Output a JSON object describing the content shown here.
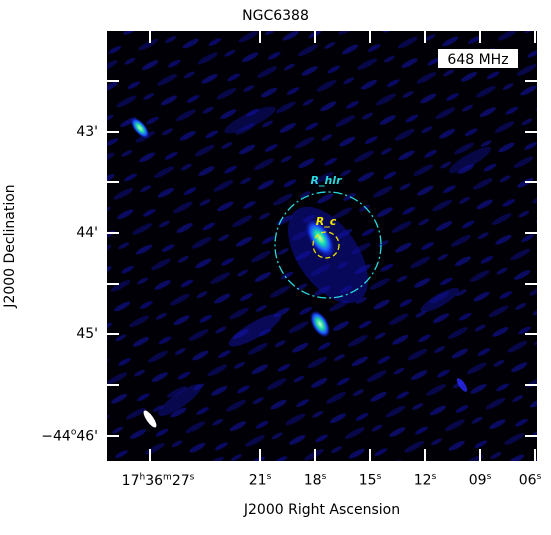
{
  "title": "NGC6388",
  "frequency_label": "648 MHz",
  "x_axis_label": "J2000 Right Ascension",
  "y_axis_label": "J2000 Declination",
  "x_ticks": [
    {
      "text": "17h36m27s"
    },
    {
      "text": "21s"
    },
    {
      "text": "18s"
    },
    {
      "text": "15s"
    },
    {
      "text": "12s"
    },
    {
      "text": "09s"
    },
    {
      "text": "06s"
    }
  ],
  "y_ticks": [
    {
      "text": "43'"
    },
    {
      "text": "44'"
    },
    {
      "text": "45'"
    },
    {
      "text": "−44°46'"
    }
  ],
  "annotations": {
    "half_light_radius": "R_hlr",
    "core_radius": "R_c"
  },
  "colors": {
    "background": "#000000",
    "emission": "#1a1aff",
    "half_light_circle": "#2ad9e0",
    "core_circle": "#f2e600",
    "frame": "#ffffff"
  }
}
